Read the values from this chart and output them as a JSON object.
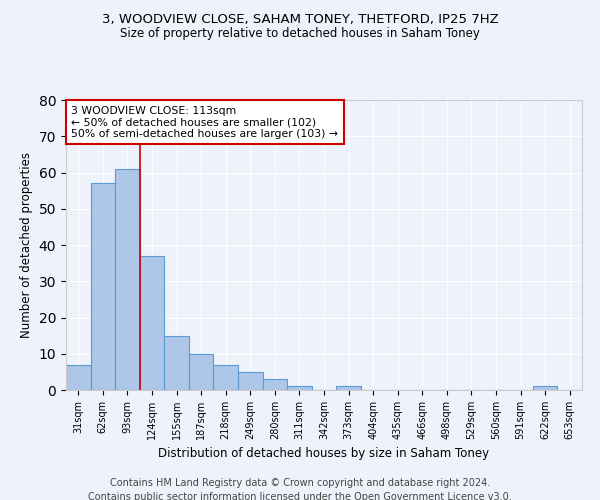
{
  "title1": "3, WOODVIEW CLOSE, SAHAM TONEY, THETFORD, IP25 7HZ",
  "title2": "Size of property relative to detached houses in Saham Toney",
  "xlabel": "Distribution of detached houses by size in Saham Toney",
  "ylabel": "Number of detached properties",
  "footer1": "Contains HM Land Registry data © Crown copyright and database right 2024.",
  "footer2": "Contains public sector information licensed under the Open Government Licence v3.0.",
  "bin_labels": [
    "31sqm",
    "62sqm",
    "93sqm",
    "124sqm",
    "155sqm",
    "187sqm",
    "218sqm",
    "249sqm",
    "280sqm",
    "311sqm",
    "342sqm",
    "373sqm",
    "404sqm",
    "435sqm",
    "466sqm",
    "498sqm",
    "529sqm",
    "560sqm",
    "591sqm",
    "622sqm",
    "653sqm"
  ],
  "bar_heights": [
    7,
    57,
    61,
    37,
    15,
    10,
    7,
    5,
    3,
    1,
    0,
    1,
    0,
    0,
    0,
    0,
    0,
    0,
    0,
    1,
    0
  ],
  "bar_color": "#aec6e8",
  "bar_edge_color": "#5b9bd5",
  "bg_color": "#eef3fb",
  "grid_color": "#ffffff",
  "annotation_text": "3 WOODVIEW CLOSE: 113sqm\n← 50% of detached houses are smaller (102)\n50% of semi-detached houses are larger (103) →",
  "annotation_box_color": "#ffffff",
  "annotation_box_edge": "#cc0000",
  "vline_color": "#cc0000",
  "vline_x_bin": 3,
  "ylim": [
    0,
    80
  ],
  "yticks": [
    0,
    10,
    20,
    30,
    40,
    50,
    60,
    70,
    80
  ]
}
